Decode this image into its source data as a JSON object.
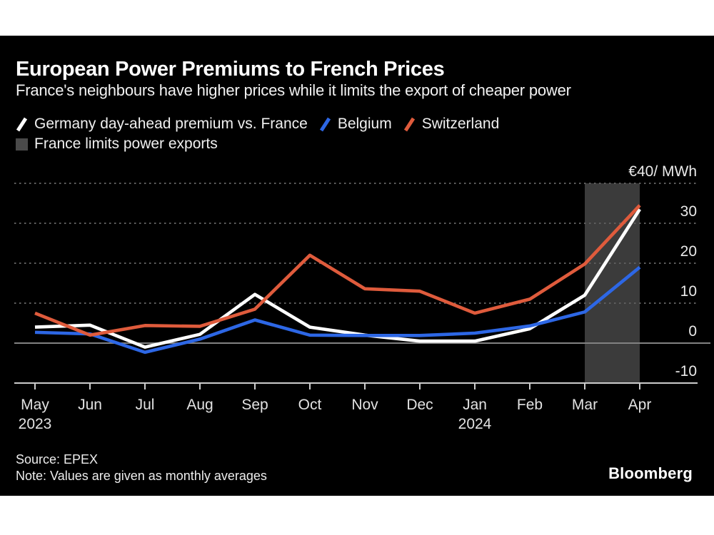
{
  "header": {
    "title": "European Power Premiums to French Prices",
    "subtitle": "France's neighbours have higher prices while it limits the export of cheaper power"
  },
  "chart_data": {
    "type": "line",
    "unit_label": "€40/ MWh",
    "months": [
      {
        "label": "May",
        "year": "2023"
      },
      {
        "label": "Jun"
      },
      {
        "label": "Jul"
      },
      {
        "label": "Aug"
      },
      {
        "label": "Sep"
      },
      {
        "label": "Oct"
      },
      {
        "label": "Nov"
      },
      {
        "label": "Dec"
      },
      {
        "label": "Jan",
        "year": "2024"
      },
      {
        "label": "Feb"
      },
      {
        "label": "Mar"
      },
      {
        "label": "Apr"
      }
    ],
    "series": [
      {
        "name": "Germany day-ahead premium vs. France",
        "color": "#ffffff",
        "values": [
          4.0,
          4.5,
          -1.0,
          2.2,
          12.2,
          4.0,
          2.0,
          0.5,
          0.5,
          3.6,
          12.0,
          33.5
        ]
      },
      {
        "name": "Belgium",
        "color": "#2d67e5",
        "values": [
          2.7,
          2.3,
          -2.3,
          1.0,
          5.8,
          2.0,
          1.9,
          1.9,
          2.5,
          4.3,
          7.8,
          19.0
        ]
      },
      {
        "name": "Switzerland",
        "color": "#df5b3c",
        "values": [
          7.5,
          2.0,
          4.4,
          4.2,
          8.5,
          22.0,
          13.6,
          13.0,
          7.5,
          11.0,
          19.8,
          34.5
        ]
      }
    ],
    "band": {
      "label": "France limits power exports",
      "from": "Mar",
      "to": "Apr",
      "color": "#3b3b3b"
    },
    "y_ticks": [
      {
        "value": 40,
        "label": "€40/ MWh",
        "line": "dotted"
      },
      {
        "value": 30,
        "label": "30",
        "line": "dotted"
      },
      {
        "value": 20,
        "label": "20",
        "line": "dotted"
      },
      {
        "value": 10,
        "label": "10",
        "line": "dotted"
      },
      {
        "value": 0,
        "label": "0",
        "line": "zero"
      },
      {
        "value": -10,
        "label": "-10",
        "line": "axis"
      }
    ],
    "ylim": [
      -10,
      40
    ],
    "grid": "horizontal dotted, zero line solid, legend top-left"
  },
  "footer": {
    "source": "Source: EPEX",
    "note": "Note: Values are given as monthly averages",
    "brand": "Bloomberg"
  }
}
